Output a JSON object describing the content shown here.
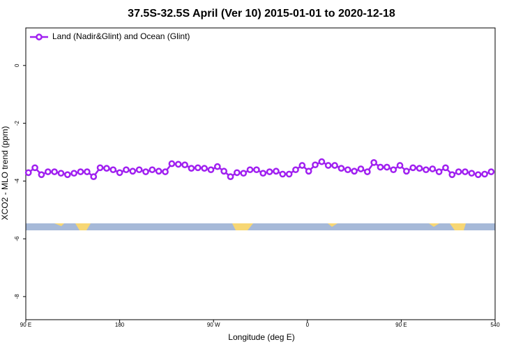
{
  "chart_data": {
    "type": "line",
    "title": "37.5S-32.5S April (Ver 10)   2015-01-01 to 2020-12-18",
    "xlabel": "Longitude (deg E)",
    "ylabel": "XCO2 - MLO trend (ppm)",
    "x": [
      92.5,
      98.75,
      105,
      111.25,
      117.5,
      123.75,
      130,
      136.25,
      142.5,
      148.75,
      155,
      161.25,
      167.5,
      173.75,
      180,
      186.25,
      192.5,
      198.75,
      205,
      211.25,
      217.5,
      223.75,
      230,
      236.25,
      242.5,
      248.75,
      255,
      261.25,
      267.5,
      273.75,
      280,
      286.25,
      292.5,
      298.75,
      305,
      311.25,
      317.5,
      323.75,
      330,
      336.25,
      342.5,
      348.75,
      355,
      361.25,
      367.5,
      373.75,
      380,
      386.25,
      392.5,
      398.75,
      405,
      411.25,
      417.5,
      423.75,
      430,
      436.25,
      442.5,
      448.75,
      455,
      461.25,
      467.5,
      473.75,
      480,
      486.25,
      492.5,
      498.75,
      505,
      511.25,
      517.5,
      523.75,
      530,
      536.25
    ],
    "series": [
      {
        "name": "Land (Nadir&Glint) and Ocean (Glint)",
        "color": "#a020f0",
        "values": [
          -3.71,
          -3.54,
          -3.78,
          -3.68,
          -3.68,
          -3.73,
          -3.78,
          -3.73,
          -3.68,
          -3.68,
          -3.85,
          -3.54,
          -3.56,
          -3.61,
          -3.71,
          -3.61,
          -3.66,
          -3.61,
          -3.68,
          -3.61,
          -3.66,
          -3.68,
          -3.4,
          -3.42,
          -3.44,
          -3.56,
          -3.54,
          -3.56,
          -3.61,
          -3.5,
          -3.66,
          -3.85,
          -3.71,
          -3.73,
          -3.61,
          -3.61,
          -3.73,
          -3.68,
          -3.66,
          -3.76,
          -3.76,
          -3.61,
          -3.46,
          -3.66,
          -3.44,
          -3.33,
          -3.46,
          -3.46,
          -3.56,
          -3.61,
          -3.66,
          -3.58,
          -3.68,
          -3.36,
          -3.52,
          -3.52,
          -3.61,
          -3.46,
          -3.66,
          -3.54,
          -3.56,
          -3.61,
          -3.58,
          -3.68,
          -3.54,
          -3.78,
          -3.68,
          -3.68,
          -3.73,
          -3.78,
          -3.76,
          -3.68
        ]
      }
    ],
    "xlim": [
      90,
      540
    ],
    "xticks": [
      {
        "value": 90,
        "label": "90 E"
      },
      180,
      {
        "value": 270,
        "label": "90 W"
      },
      {
        "value": 360,
        "label": "0"
      },
      {
        "value": 450,
        "label": "90 E"
      },
      540
    ],
    "ylim": [
      -8.8,
      1.3
    ],
    "yticks": [
      0,
      -2,
      -4,
      -6,
      -8
    ],
    "legend": "top-left",
    "grid": false
  }
}
